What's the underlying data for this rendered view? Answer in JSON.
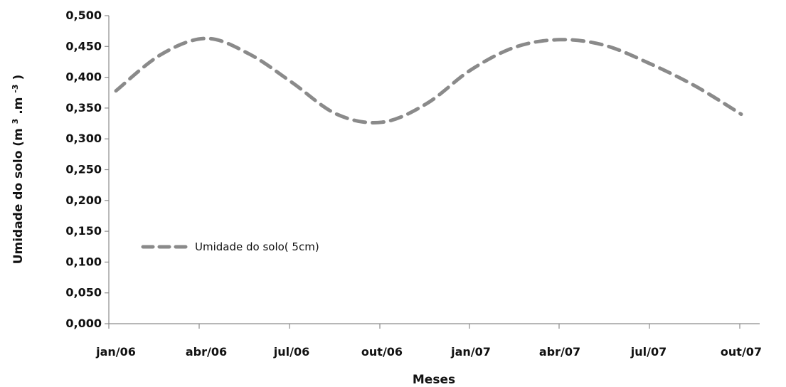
{
  "chart_data": {
    "type": "line",
    "title": "",
    "xlabel": "Meses",
    "ylabel_base": "Umidade do solo (m",
    "ylabel_mid": ".m",
    "ylabel_end": ")",
    "ylabel_sup1": "3",
    "ylabel_sup2": "-3",
    "categories": [
      "jan/06",
      "abr/06",
      "jul/06",
      "out/06",
      "jan/07",
      "abr/07",
      "jul/07",
      "out/07"
    ],
    "y_ticks": [
      "0,000",
      "0,050",
      "0,100",
      "0,150",
      "0,200",
      "0,250",
      "0,300",
      "0,350",
      "0,400",
      "0,450",
      "0,500"
    ],
    "ylim": [
      0,
      0.5
    ],
    "legend_position": "left-middle",
    "series": [
      {
        "name": "Umidade do solo( 5cm)",
        "color": "#8a8a8a",
        "dash": true,
        "x": [
          0,
          0.5,
          1.0,
          1.5,
          2.0,
          2.5,
          3.0,
          3.5,
          4.0,
          4.5,
          5.0,
          5.5,
          6.0,
          6.5,
          7.0
        ],
        "values": [
          0.378,
          0.437,
          0.463,
          0.438,
          0.392,
          0.34,
          0.327,
          0.357,
          0.412,
          0.449,
          0.461,
          0.452,
          0.423,
          0.386,
          0.34
        ]
      }
    ]
  }
}
